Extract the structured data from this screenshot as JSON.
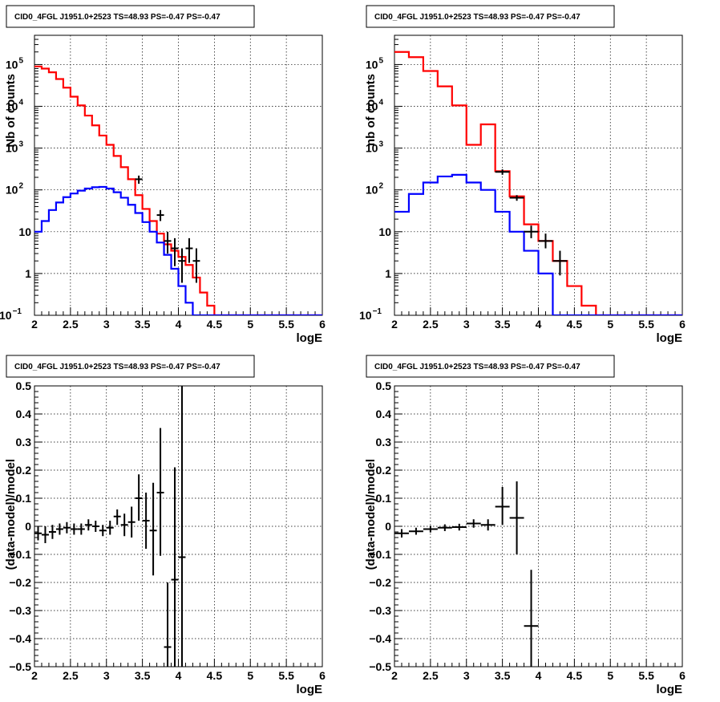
{
  "chart_data": [
    {
      "type": "line",
      "title": "CID0_4FGL J1951.0+2523 TS=48.93 PS=-0.47 PS=-0.47",
      "xlabel": "logE",
      "ylabel": "Nb of counts",
      "xlim": [
        2,
        6
      ],
      "ylim": [
        0.1,
        500000
      ],
      "yscale": "log",
      "grid": true,
      "x_ticks": [
        "2",
        "2.5",
        "3",
        "3.5",
        "4",
        "4.5",
        "5",
        "5.5",
        "6"
      ],
      "y_ticks": [
        {
          "value": 0.1,
          "label": "10",
          "exp": "−1"
        },
        {
          "value": 1,
          "label": "1",
          "exp": ""
        },
        {
          "value": 10,
          "label": "10",
          "exp": ""
        },
        {
          "value": 100,
          "label": "10",
          "exp": "2"
        },
        {
          "value": 1000,
          "label": "10",
          "exp": "3"
        },
        {
          "value": 10000,
          "label": "10",
          "exp": "4"
        },
        {
          "value": 100000,
          "label": "10",
          "exp": "5"
        }
      ],
      "bin_edges": [
        2.0,
        2.1,
        2.2,
        2.3,
        2.4,
        2.5,
        2.6,
        2.7,
        2.8,
        2.9,
        3.0,
        3.1,
        3.2,
        3.3,
        3.4,
        3.5,
        3.6,
        3.7,
        3.8,
        3.9,
        4.0,
        4.1,
        4.2,
        4.3,
        4.4,
        4.5,
        4.6,
        4.7,
        4.8,
        4.9,
        5.0,
        5.1,
        5.2,
        5.3,
        5.4,
        5.5,
        5.6,
        5.7,
        5.8,
        5.9,
        6.0
      ],
      "series": [
        {
          "name": "",
          "kind": "hist",
          "color": "#ff0000",
          "values": [
            90000,
            80000,
            65000,
            45000,
            28000,
            17000,
            10500,
            6000,
            3500,
            2000,
            1200,
            650,
            350,
            180,
            75,
            35,
            18,
            9,
            5,
            3.5,
            2.5,
            1.6,
            0.8,
            0.35,
            0.17,
            0.1,
            0.1,
            0.1,
            0.1,
            0.1,
            0.1,
            0.1,
            0.1,
            0.1,
            0.1,
            0.1,
            0.1,
            0.1,
            0.1,
            0.1
          ]
        },
        {
          "name": "",
          "kind": "hist",
          "color": "#0000ff",
          "values": [
            10,
            18,
            33,
            50,
            67,
            82,
            96,
            108,
            116,
            118,
            108,
            88,
            65,
            44,
            28,
            17,
            10,
            5.5,
            2.8,
            1.3,
            0.5,
            0.2,
            0.1,
            0.1,
            0.1,
            0.1,
            0.1,
            0.1,
            0.1,
            0.1,
            0.1,
            0.1,
            0.1,
            0.1,
            0.1,
            0.1,
            0.1,
            0.1,
            0.1,
            0.1
          ]
        },
        {
          "name": "",
          "kind": "points",
          "color": "#000000",
          "points": [
            {
              "x": 3.45,
              "y": 180,
              "ylo": 140,
              "yhi": 220,
              "xerr": 0.05
            },
            {
              "x": 3.75,
              "y": 25,
              "ylo": 18,
              "yhi": 33,
              "xerr": 0.05
            },
            {
              "x": 3.85,
              "y": 6,
              "ylo": 3,
              "yhi": 10,
              "xerr": 0.05
            },
            {
              "x": 3.95,
              "y": 4,
              "ylo": 1.5,
              "yhi": 7,
              "xerr": 0.05
            },
            {
              "x": 4.05,
              "y": 2,
              "ylo": 0.6,
              "yhi": 4,
              "xerr": 0.05
            },
            {
              "x": 4.15,
              "y": 4,
              "ylo": 1.8,
              "yhi": 7,
              "xerr": 0.05
            },
            {
              "x": 4.25,
              "y": 2,
              "ylo": 0.6,
              "yhi": 4,
              "xerr": 0.05
            }
          ]
        }
      ]
    },
    {
      "type": "line",
      "title": "CID0_4FGL J1951.0+2523 TS=48.93 PS=-0.47 PS=-0.47",
      "xlabel": "logE",
      "ylabel": "nb of counts",
      "xlim": [
        2,
        6
      ],
      "ylim": [
        0.1,
        500000
      ],
      "yscale": "log",
      "grid": true,
      "x_ticks": [
        "2",
        "2.5",
        "3",
        "3.5",
        "4",
        "4.5",
        "5",
        "5.5",
        "6"
      ],
      "y_ticks": [
        {
          "value": 0.1,
          "label": "10",
          "exp": "−1"
        },
        {
          "value": 1,
          "label": "1",
          "exp": ""
        },
        {
          "value": 10,
          "label": "10",
          "exp": ""
        },
        {
          "value": 100,
          "label": "10",
          "exp": "2"
        },
        {
          "value": 1000,
          "label": "10",
          "exp": "3"
        },
        {
          "value": 10000,
          "label": "10",
          "exp": "4"
        },
        {
          "value": 100000,
          "label": "10",
          "exp": "5"
        }
      ],
      "bin_edges": [
        2.0,
        2.2,
        2.4,
        2.6,
        2.8,
        3.0,
        3.2,
        3.4,
        3.6,
        3.8,
        4.0,
        4.2,
        4.4,
        4.6,
        4.8,
        5.0,
        5.2,
        5.4,
        5.6,
        5.8,
        6.0
      ],
      "series": [
        {
          "name": "",
          "kind": "hist",
          "color": "#ff0000",
          "values": [
            200000,
            150000,
            70000,
            30000,
            10500,
            1200,
            3700,
            280,
            70,
            15,
            6,
            2,
            0.5,
            0.17,
            0.1,
            0.1,
            0.1,
            0.1,
            0.1,
            0.1
          ]
        },
        {
          "name": "",
          "kind": "hist",
          "color": "#0000ff",
          "values": [
            30,
            80,
            150,
            210,
            230,
            150,
            100,
            30,
            10,
            3.5,
            1,
            0.1,
            0.1,
            0.1,
            0.1,
            0.1,
            0.1,
            0.1,
            0.1,
            0.1
          ]
        },
        {
          "name": "",
          "kind": "points",
          "color": "#000000",
          "points": [
            {
              "x": 3.5,
              "y": 270,
              "ylo": 230,
              "yhi": 310,
              "xerr": 0.1
            },
            {
              "x": 3.7,
              "y": 65,
              "ylo": 55,
              "yhi": 75,
              "xerr": 0.1
            },
            {
              "x": 3.9,
              "y": 10,
              "ylo": 7,
              "yhi": 14,
              "xerr": 0.1
            },
            {
              "x": 4.1,
              "y": 6,
              "ylo": 4,
              "yhi": 9,
              "xerr": 0.1
            },
            {
              "x": 4.3,
              "y": 2,
              "ylo": 0.9,
              "yhi": 3.5,
              "xerr": 0.1
            }
          ]
        }
      ]
    },
    {
      "type": "scatter",
      "title": "CID0_4FGL J1951.0+2523 TS=48.93 PS=-0.47 PS=-0.47",
      "xlabel": "logE",
      "ylabel": "(data-model)/model",
      "xlim": [
        2,
        6
      ],
      "ylim": [
        -0.5,
        0.5
      ],
      "yscale": "linear",
      "grid": true,
      "x_ticks": [
        "2",
        "2.5",
        "3",
        "3.5",
        "4",
        "4.5",
        "5",
        "5.5",
        "6"
      ],
      "y_ticks": [
        {
          "value": -0.5,
          "label": "−0.5"
        },
        {
          "value": -0.4,
          "label": "−0.4"
        },
        {
          "value": -0.3,
          "label": "−0.3"
        },
        {
          "value": -0.2,
          "label": "−0.2"
        },
        {
          "value": -0.1,
          "label": "−0.1"
        },
        {
          "value": 0,
          "label": "0"
        },
        {
          "value": 0.1,
          "label": "0.1"
        },
        {
          "value": 0.2,
          "label": "0.2"
        },
        {
          "value": 0.3,
          "label": "0.3"
        },
        {
          "value": 0.4,
          "label": "0.4"
        },
        {
          "value": 0.5,
          "label": "0.5"
        }
      ],
      "series": [
        {
          "name": "",
          "kind": "points",
          "color": "#000000",
          "points": [
            {
              "x": 2.05,
              "y": -0.025,
              "ylo": -0.05,
              "yhi": 0.0,
              "xerr": 0.05
            },
            {
              "x": 2.15,
              "y": -0.03,
              "ylo": -0.06,
              "yhi": 0.0,
              "xerr": 0.05
            },
            {
              "x": 2.25,
              "y": -0.02,
              "ylo": -0.045,
              "yhi": 0.005,
              "xerr": 0.05
            },
            {
              "x": 2.35,
              "y": -0.01,
              "ylo": -0.03,
              "yhi": 0.01,
              "xerr": 0.05
            },
            {
              "x": 2.45,
              "y": -0.005,
              "ylo": -0.025,
              "yhi": 0.015,
              "xerr": 0.05
            },
            {
              "x": 2.55,
              "y": -0.01,
              "ylo": -0.03,
              "yhi": 0.01,
              "xerr": 0.05
            },
            {
              "x": 2.65,
              "y": -0.01,
              "ylo": -0.03,
              "yhi": 0.01,
              "xerr": 0.05
            },
            {
              "x": 2.75,
              "y": 0.005,
              "ylo": -0.015,
              "yhi": 0.025,
              "xerr": 0.05
            },
            {
              "x": 2.85,
              "y": 0.0,
              "ylo": -0.02,
              "yhi": 0.02,
              "xerr": 0.05
            },
            {
              "x": 2.95,
              "y": -0.015,
              "ylo": -0.035,
              "yhi": 0.005,
              "xerr": 0.05
            },
            {
              "x": 3.05,
              "y": -0.005,
              "ylo": -0.03,
              "yhi": 0.02,
              "xerr": 0.05
            },
            {
              "x": 3.15,
              "y": 0.035,
              "ylo": 0.005,
              "yhi": 0.06,
              "xerr": 0.05
            },
            {
              "x": 3.25,
              "y": 0.005,
              "ylo": -0.035,
              "yhi": 0.045,
              "xerr": 0.05
            },
            {
              "x": 3.35,
              "y": 0.015,
              "ylo": -0.04,
              "yhi": 0.07,
              "xerr": 0.05
            },
            {
              "x": 3.45,
              "y": 0.1,
              "ylo": 0.02,
              "yhi": 0.185,
              "xerr": 0.05
            },
            {
              "x": 3.55,
              "y": 0.02,
              "ylo": -0.08,
              "yhi": 0.12,
              "xerr": 0.05
            },
            {
              "x": 3.65,
              "y": -0.015,
              "ylo": -0.175,
              "yhi": 0.155,
              "xerr": 0.05
            },
            {
              "x": 3.75,
              "y": 0.12,
              "ylo": -0.105,
              "yhi": 0.35,
              "xerr": 0.05
            },
            {
              "x": 3.85,
              "y": -0.43,
              "ylo": -0.5,
              "yhi": -0.2,
              "xerr": 0.05
            },
            {
              "x": 3.95,
              "y": -0.19,
              "ylo": -0.5,
              "yhi": 0.21,
              "xerr": 0.05
            },
            {
              "x": 4.05,
              "y": -0.11,
              "ylo": -0.5,
              "yhi": 0.5,
              "xerr": 0.05
            }
          ]
        }
      ]
    },
    {
      "type": "scatter",
      "title": "CID0_4FGL J1951.0+2523 TS=48.93 PS=-0.47 PS=-0.47",
      "xlabel": "logE",
      "ylabel": "(data-model)/model",
      "xlim": [
        2,
        6
      ],
      "ylim": [
        -0.5,
        0.5
      ],
      "yscale": "linear",
      "grid": true,
      "x_ticks": [
        "2",
        "2.5",
        "3",
        "3.5",
        "4",
        "4.5",
        "5",
        "5.5",
        "6"
      ],
      "y_ticks": [
        {
          "value": -0.5,
          "label": "−0.5"
        },
        {
          "value": -0.4,
          "label": "−0.4"
        },
        {
          "value": -0.3,
          "label": "−0.3"
        },
        {
          "value": -0.2,
          "label": "−0.2"
        },
        {
          "value": -0.1,
          "label": "−0.1"
        },
        {
          "value": 0,
          "label": "0"
        },
        {
          "value": 0.1,
          "label": "0.1"
        },
        {
          "value": 0.2,
          "label": "0.2"
        },
        {
          "value": 0.3,
          "label": "0.3"
        },
        {
          "value": 0.4,
          "label": "0.4"
        },
        {
          "value": 0.5,
          "label": "0.5"
        }
      ],
      "series": [
        {
          "name": "",
          "kind": "points",
          "color": "#000000",
          "points": [
            {
              "x": 2.1,
              "y": -0.025,
              "ylo": -0.04,
              "yhi": -0.01,
              "xerr": 0.1
            },
            {
              "x": 2.3,
              "y": -0.018,
              "ylo": -0.03,
              "yhi": -0.005,
              "xerr": 0.1
            },
            {
              "x": 2.5,
              "y": -0.01,
              "ylo": -0.022,
              "yhi": 0.002,
              "xerr": 0.1
            },
            {
              "x": 2.7,
              "y": -0.005,
              "ylo": -0.017,
              "yhi": 0.007,
              "xerr": 0.1
            },
            {
              "x": 2.9,
              "y": -0.003,
              "ylo": -0.015,
              "yhi": 0.009,
              "xerr": 0.1
            },
            {
              "x": 3.1,
              "y": 0.01,
              "ylo": -0.005,
              "yhi": 0.025,
              "xerr": 0.1
            },
            {
              "x": 3.3,
              "y": 0.005,
              "ylo": -0.015,
              "yhi": 0.025,
              "xerr": 0.1
            },
            {
              "x": 3.5,
              "y": 0.07,
              "ylo": 0.005,
              "yhi": 0.14,
              "xerr": 0.1
            },
            {
              "x": 3.7,
              "y": 0.03,
              "ylo": -0.1,
              "yhi": 0.16,
              "xerr": 0.1
            },
            {
              "x": 3.9,
              "y": -0.355,
              "ylo": -0.5,
              "yhi": -0.155,
              "xerr": 0.1
            }
          ]
        }
      ]
    }
  ]
}
